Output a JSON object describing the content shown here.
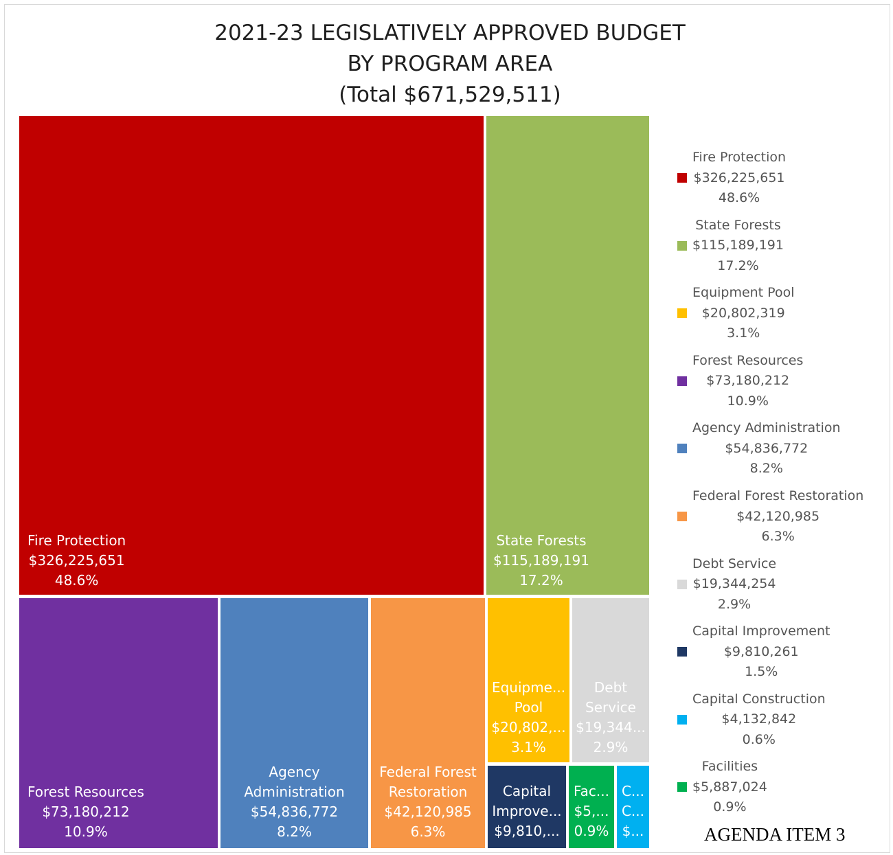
{
  "title_lines": [
    "2021-23 LEGISLATIVELY APPROVED BUDGET",
    "BY PROGRAM AREA",
    "(Total $671,529,511)"
  ],
  "footer_label": "AGENDA ITEM 3",
  "chart_data": {
    "type": "treemap",
    "title": "2021-23 LEGISLATIVELY APPROVED BUDGET BY PROGRAM AREA (Total $671,529,511)",
    "total": 671529511,
    "legend_position": "right",
    "items": [
      {
        "name": "Fire Protection",
        "value": 326225651,
        "value_label": "$326,225,651",
        "percent_label": "48.6%",
        "color": "#c00000",
        "tile_lines": [
          "Fire Protection",
          "$326,225,651",
          "48.6%"
        ]
      },
      {
        "name": "State Forests",
        "value": 115189191,
        "value_label": "$115,189,191",
        "percent_label": "17.2%",
        "color": "#9bbb59",
        "tile_lines": [
          "State Forests",
          "$115,189,191",
          "17.2%"
        ]
      },
      {
        "name": "Equipment Pool",
        "value": 20802319,
        "value_label": "$20,802,319",
        "percent_label": "3.1%",
        "color": "#ffc000",
        "tile_lines": [
          "Equipme...",
          "Pool",
          "$20,802,...",
          "3.1%"
        ]
      },
      {
        "name": "Forest Resources",
        "value": 73180212,
        "value_label": "$73,180,212",
        "percent_label": "10.9%",
        "color": "#7030a0",
        "tile_lines": [
          "Forest Resources",
          "$73,180,212",
          "10.9%"
        ]
      },
      {
        "name": "Agency Administration",
        "value": 54836772,
        "value_label": "$54,836,772",
        "percent_label": "8.2%",
        "color": "#4f81bd",
        "tile_lines": [
          "Agency",
          "Administration",
          "$54,836,772",
          "8.2%"
        ]
      },
      {
        "name": "Federal Forest Restoration",
        "value": 42120985,
        "value_label": "$42,120,985",
        "percent_label": "6.3%",
        "color": "#f79646",
        "tile_lines": [
          "Federal Forest",
          "Restoration",
          "$42,120,985",
          "6.3%"
        ]
      },
      {
        "name": "Debt Service",
        "value": 19344254,
        "value_label": "$19,344,254",
        "percent_label": "2.9%",
        "color": "#d9d9d9",
        "tile_lines": [
          "Debt",
          "Service",
          "$19,344...",
          "2.9%"
        ]
      },
      {
        "name": "Capital Improvement",
        "value": 9810261,
        "value_label": "$9,810,261",
        "percent_label": "1.5%",
        "color": "#1f3864",
        "tile_lines": [
          "Capital",
          "Improve...",
          "$9,810,..."
        ]
      },
      {
        "name": "Capital Construction",
        "value": 4132842,
        "value_label": "$4,132,842",
        "percent_label": "0.6%",
        "color": "#00b0f0",
        "tile_lines": [
          "C...",
          "C...",
          "$..."
        ]
      },
      {
        "name": "Facilities",
        "value": 5887024,
        "value_label": "$5,887,024",
        "percent_label": "0.9%",
        "color": "#00b050",
        "tile_lines": [
          "Fac...",
          "$5,...",
          "0.9%"
        ]
      }
    ]
  }
}
